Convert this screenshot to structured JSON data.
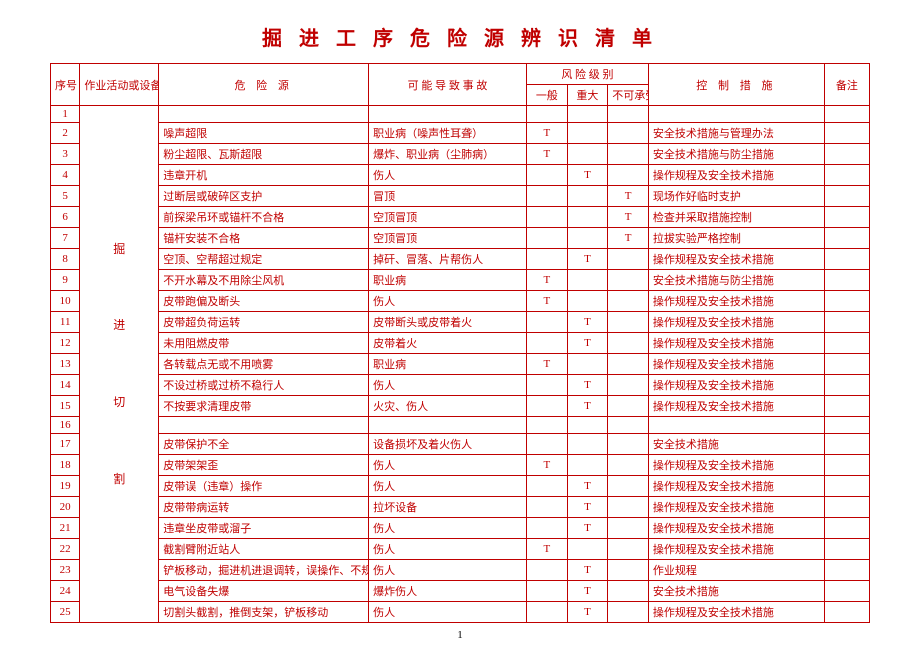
{
  "title": "掘 进 工 序 危 险 源 辨 识 清 单",
  "headers": {
    "seq": "序号",
    "area": "作业活动或设备 (材料) 名 称",
    "hazard": "危 险 源",
    "accident": "可 能 导 致 事 故",
    "risk_group": "风 险 级 别",
    "r1": "一般",
    "r2": "重大",
    "r3": "不可承受",
    "measure": "控 制 措 施",
    "remark": "备注"
  },
  "area_label": "掘\n进\n切\n割",
  "rows": [
    {
      "n": "1",
      "h": "",
      "a": "",
      "r1": "",
      "r2": "",
      "r3": "",
      "m": ""
    },
    {
      "n": "2",
      "h": "噪声超限",
      "a": "职业病（噪声性耳聋）",
      "r1": "T",
      "r2": "",
      "r3": "",
      "m": "安全技术措施与管理办法"
    },
    {
      "n": "3",
      "h": "粉尘超限、瓦斯超限",
      "a": "爆炸、职业病（尘肺病）",
      "r1": "T",
      "r2": "",
      "r3": "",
      "m": "安全技术措施与防尘措施"
    },
    {
      "n": "4",
      "h": "违章开机",
      "a": "伤人",
      "r1": "",
      "r2": "T",
      "r3": "",
      "m": "操作规程及安全技术措施"
    },
    {
      "n": "5",
      "h": "过断层或破碎区支护",
      "a": "冒顶",
      "r1": "",
      "r2": "",
      "r3": "T",
      "m": "现场作好临时支护"
    },
    {
      "n": "6",
      "h": "前探梁吊环或锚杆不合格",
      "a": "空顶冒顶",
      "r1": "",
      "r2": "",
      "r3": "T",
      "m": "检查并采取措施控制"
    },
    {
      "n": "7",
      "h": "锚杆安装不合格",
      "a": "空顶冒顶",
      "r1": "",
      "r2": "",
      "r3": "T",
      "m": "拉拔实验严格控制"
    },
    {
      "n": "8",
      "h": "空顶、空帮超过规定",
      "a": "掉矸、冒落、片帮伤人",
      "r1": "",
      "r2": "T",
      "r3": "",
      "m": "操作规程及安全技术措施"
    },
    {
      "n": "9",
      "h": "不开水幕及不用除尘风机",
      "a": "职业病",
      "r1": "T",
      "r2": "",
      "r3": "",
      "m": "安全技术措施与防尘措施"
    },
    {
      "n": "10",
      "h": "皮带跑偏及断头",
      "a": "伤人",
      "r1": "T",
      "r2": "",
      "r3": "",
      "m": "操作规程及安全技术措施"
    },
    {
      "n": "11",
      "h": "皮带超负荷运转",
      "a": "皮带断头或皮带着火",
      "r1": "",
      "r2": "T",
      "r3": "",
      "m": "操作规程及安全技术措施"
    },
    {
      "n": "12",
      "h": "未用阻燃皮带",
      "a": "皮带着火",
      "r1": "",
      "r2": "T",
      "r3": "",
      "m": "操作规程及安全技术措施"
    },
    {
      "n": "13",
      "h": "各转载点无或不用喷雾",
      "a": "职业病",
      "r1": "T",
      "r2": "",
      "r3": "",
      "m": "操作规程及安全技术措施"
    },
    {
      "n": "14",
      "h": "不设过桥或过桥不稳行人",
      "a": "伤人",
      "r1": "",
      "r2": "T",
      "r3": "",
      "m": "操作规程及安全技术措施"
    },
    {
      "n": "15",
      "h": "不按要求清理皮带",
      "a": "火灾、伤人",
      "r1": "",
      "r2": "T",
      "r3": "",
      "m": "操作规程及安全技术措施"
    },
    {
      "n": "16",
      "h": "",
      "a": "",
      "r1": "",
      "r2": "",
      "r3": "",
      "m": ""
    },
    {
      "n": "17",
      "h": "皮带保护不全",
      "a": "设备损坏及着火伤人",
      "r1": "",
      "r2": "",
      "r3": "",
      "m": "安全技术措施"
    },
    {
      "n": "18",
      "h": "皮带架架歪",
      "a": "伤人",
      "r1": "T",
      "r2": "",
      "r3": "",
      "m": "操作规程及安全技术措施"
    },
    {
      "n": "19",
      "h": "皮带误（违章）操作",
      "a": "伤人",
      "r1": "",
      "r2": "T",
      "r3": "",
      "m": "操作规程及安全技术措施"
    },
    {
      "n": "20",
      "h": "皮带带病运转",
      "a": "拉坏设备",
      "r1": "",
      "r2": "T",
      "r3": "",
      "m": "操作规程及安全技术措施"
    },
    {
      "n": "21",
      "h": "违章坐皮带或溜子",
      "a": "伤人",
      "r1": "",
      "r2": "T",
      "r3": "",
      "m": "操作规程及安全技术措施"
    },
    {
      "n": "22",
      "h": "截割臂附近站人",
      "a": "伤人",
      "r1": "T",
      "r2": "",
      "r3": "",
      "m": "操作规程及安全技术措施"
    },
    {
      "n": "23",
      "h": "铲板移动，掘进机进退调转，误操作、不规范操作",
      "a": "伤人",
      "r1": "",
      "r2": "T",
      "r3": "",
      "m": "作业规程"
    },
    {
      "n": "24",
      "h": "电气设备失爆",
      "a": "爆炸伤人",
      "r1": "",
      "r2": "T",
      "r3": "",
      "m": "安全技术措施"
    },
    {
      "n": "25",
      "h": "切割头截割，推倒支架，铲板移动",
      "a": "伤人",
      "r1": "",
      "r2": "T",
      "r3": "",
      "m": "操作规程及安全技术措施"
    }
  ],
  "page_number": "1"
}
